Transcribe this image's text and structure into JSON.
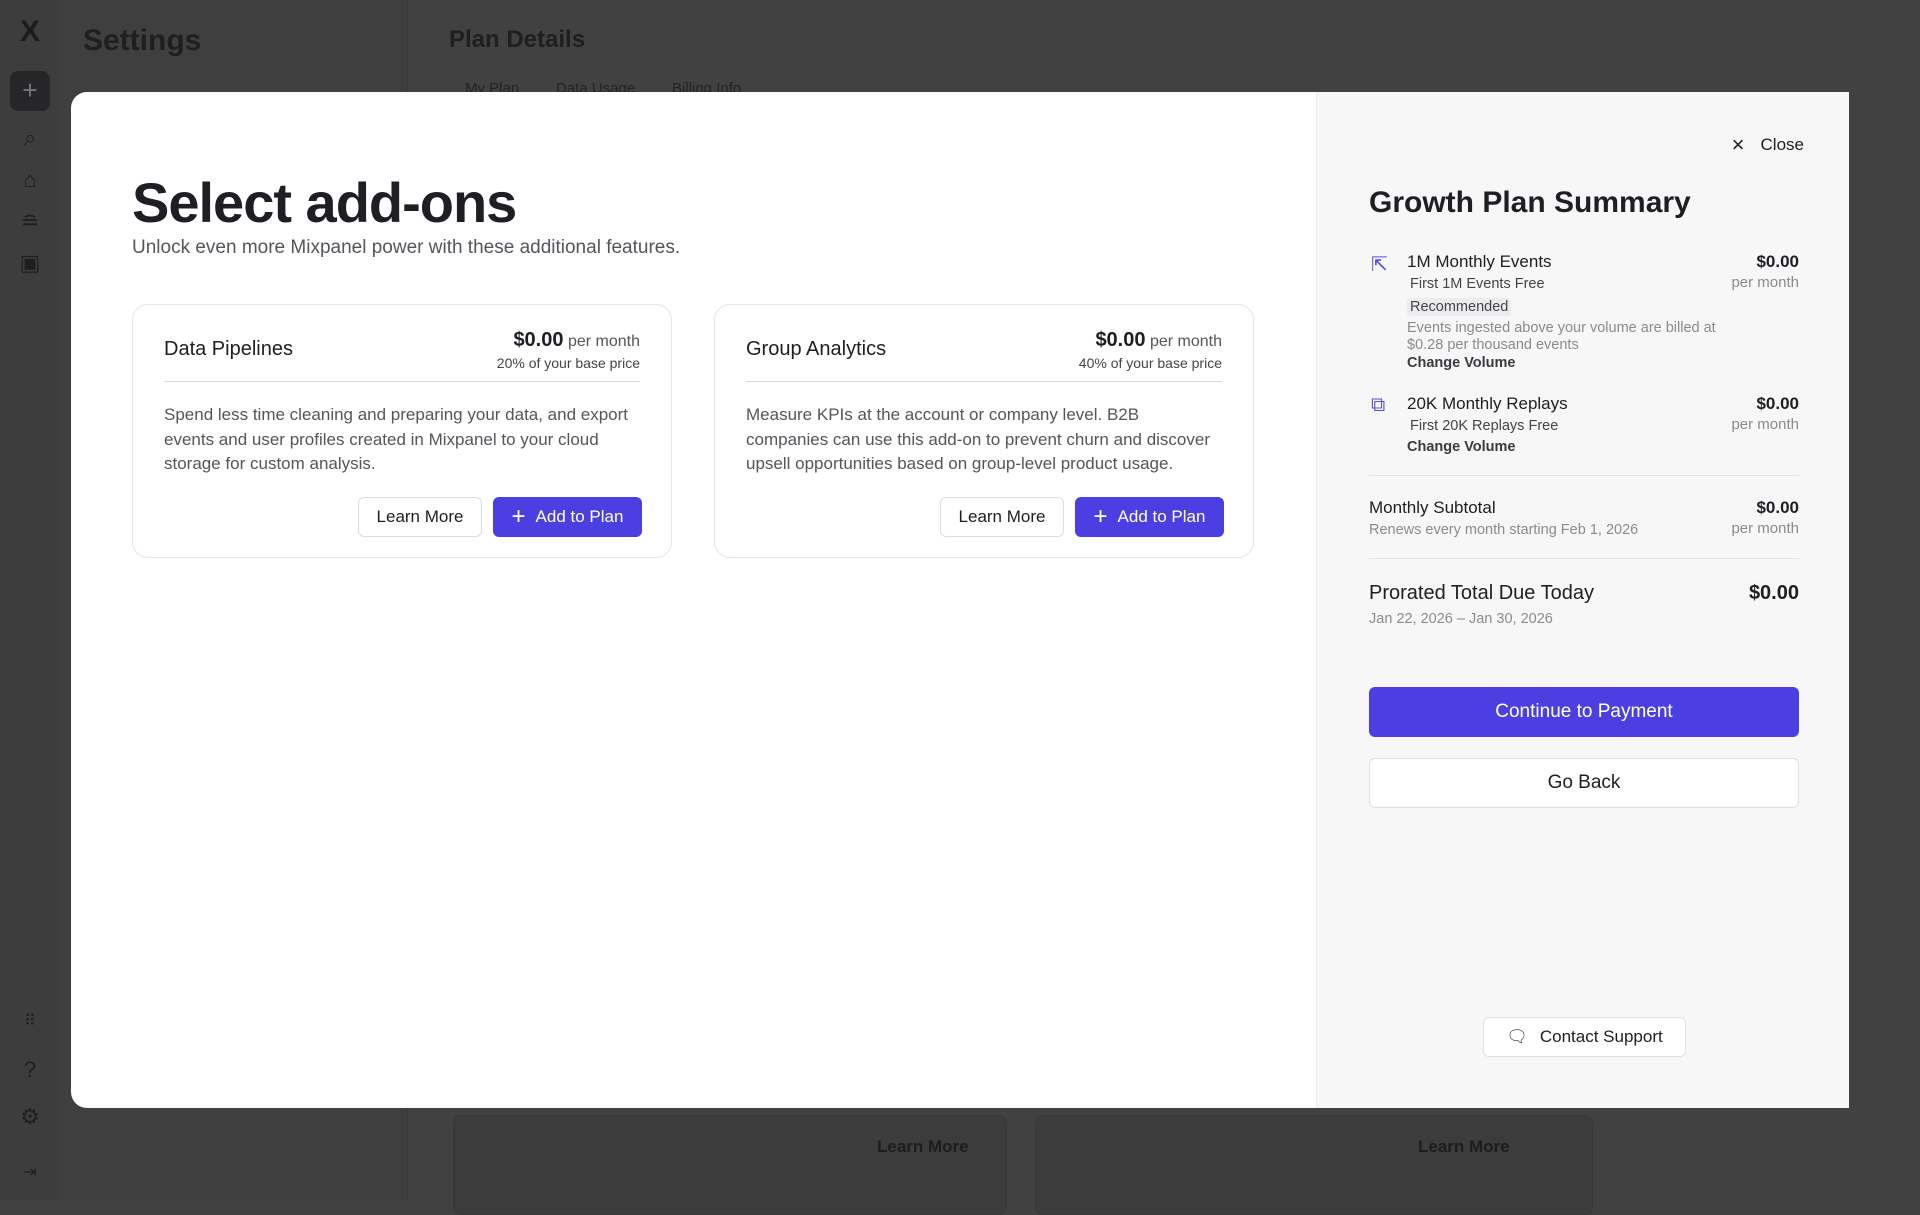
{
  "background": {
    "settings_title": "Settings",
    "plan_title": "Plan Details",
    "tabs": [
      "My Plan",
      "Data Usage",
      "Billing Info"
    ],
    "learn_more": "Learn More"
  },
  "rail": {
    "icons": [
      "mixpanel-logo",
      "plus-icon",
      "search-icon",
      "home-icon",
      "database-icon",
      "replay-icon",
      "apps-grid-icon",
      "help-icon",
      "gear-icon",
      "collapse-icon"
    ]
  },
  "modal": {
    "title": "Select add-ons",
    "subtitle": "Unlock even more Mixpanel power with these additional features.",
    "cards": [
      {
        "title": "Data Pipelines",
        "price": "$0.00",
        "period": "per month",
        "pct": "20% of your base price",
        "desc": "Spend less time cleaning and preparing your data, and export events and user profiles created in Mixpanel to your cloud storage for custom analysis.",
        "learn": "Learn More",
        "add": "Add to Plan"
      },
      {
        "title": "Group Analytics",
        "price": "$0.00",
        "period": "per month",
        "pct": "40% of your base price",
        "desc": "Measure KPIs at the account or company level. B2B companies can use this add-on to prevent churn and discover upsell opportunities based on group-level product usage.",
        "learn": "Learn More",
        "add": "Add to Plan"
      }
    ],
    "summary": {
      "close": "Close",
      "title": "Growth Plan Summary",
      "events": {
        "name": "1M Monthly Events",
        "free": "First 1M Events Free",
        "badge": "Recommended",
        "note1": "Events ingested above your volume are billed at",
        "note2": "$0.28 per thousand events",
        "change": "Change Volume",
        "amount": "$0.00",
        "period": "per month"
      },
      "replays": {
        "name": "20K Monthly Replays",
        "free": "First 20K Replays Free",
        "change": "Change Volume",
        "amount": "$0.00",
        "period": "per month"
      },
      "subtotal": {
        "label": "Monthly Subtotal",
        "note": "Renews every month starting Feb 1, 2026",
        "amount": "$0.00",
        "period": "per month"
      },
      "prorated": {
        "label": "Prorated Total Due Today",
        "note": "Jan 22, 2026 – Jan 30, 2026",
        "amount": "$0.00"
      },
      "continue": "Continue to Payment",
      "back": "Go Back",
      "support": "Contact Support"
    },
    "accent": "#4c3fe1"
  }
}
